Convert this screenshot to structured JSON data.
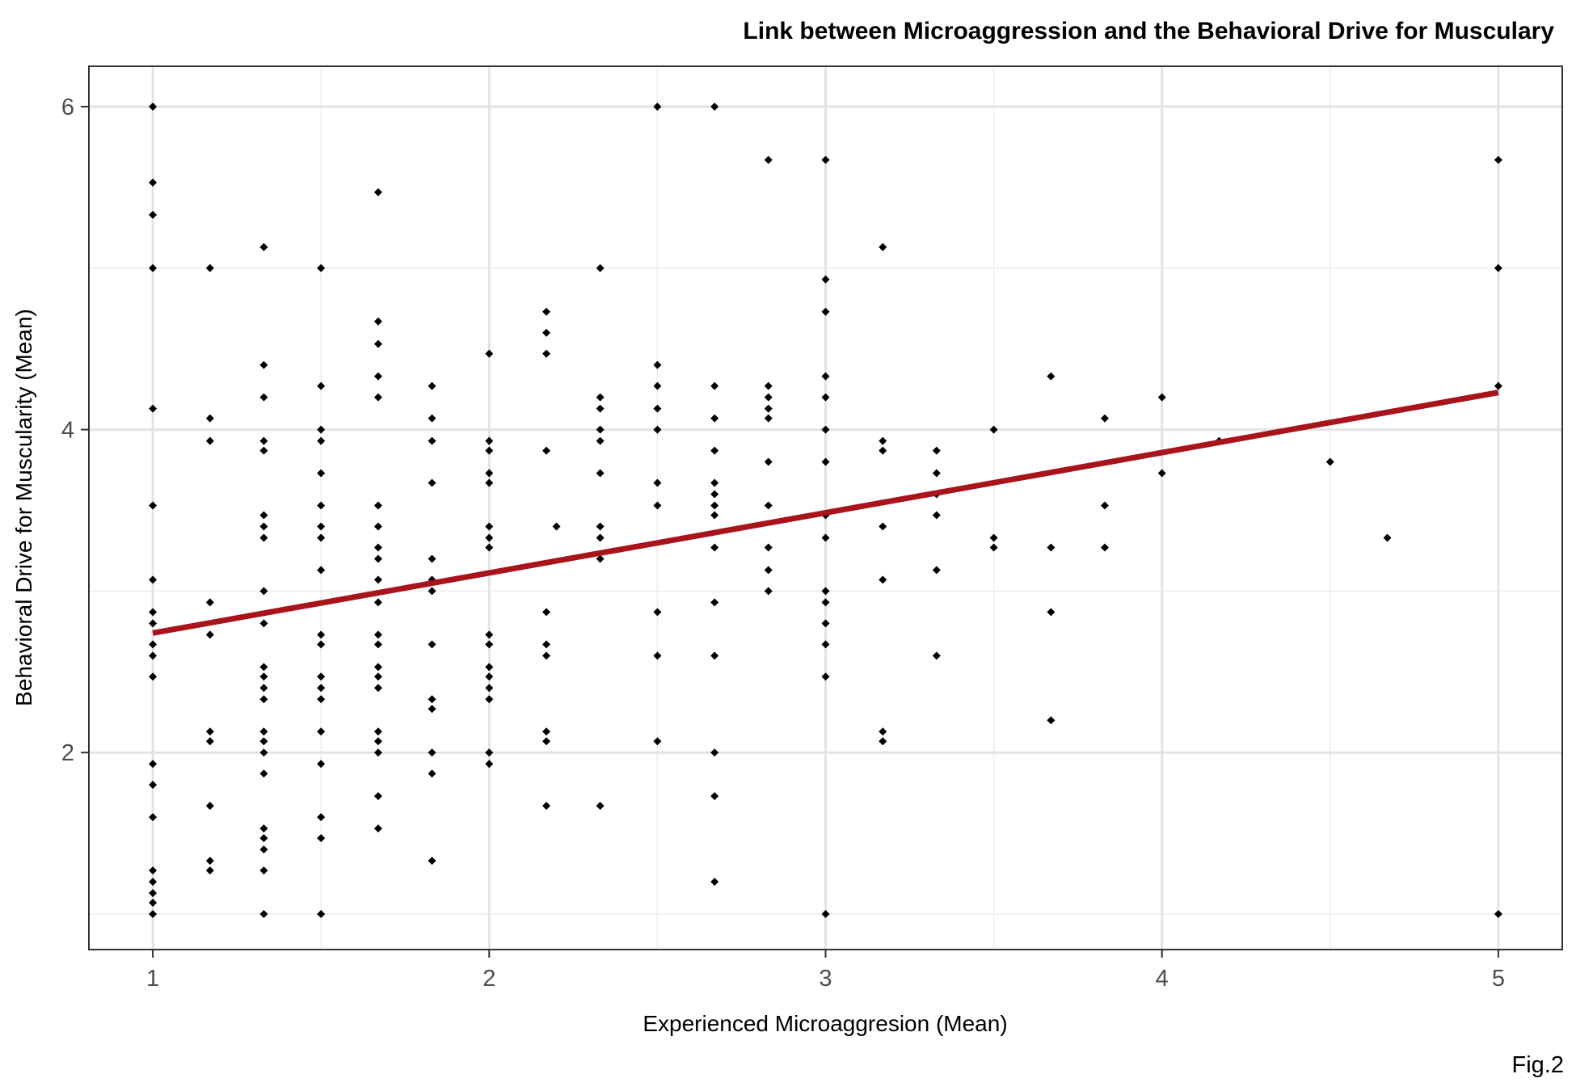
{
  "chart_data": {
    "type": "scatter",
    "title": "Link between Microaggression and the Behavioral Drive for Musculary",
    "xlabel": "Experienced Microaggresion (Mean)",
    "ylabel": "Behavioral Drive for Muscularity (Mean)",
    "caption": "Fig.2",
    "xlim": [
      0.81,
      5.19
    ],
    "ylim": [
      0.78,
      6.25
    ],
    "x_ticks": [
      1,
      2,
      3,
      4,
      5
    ],
    "y_ticks": [
      2,
      4,
      6
    ],
    "grid": true,
    "point_color": "#000000",
    "fit_line": {
      "x": [
        1,
        5
      ],
      "y": [
        2.74,
        4.23
      ],
      "color": "#a8131c"
    },
    "points": [
      [
        1,
        6
      ],
      [
        1,
        5.53
      ],
      [
        1,
        5.33
      ],
      [
        1,
        5
      ],
      [
        1,
        4.13
      ],
      [
        1,
        3.53
      ],
      [
        1,
        3.07
      ],
      [
        1,
        2.87
      ],
      [
        1,
        2.8
      ],
      [
        1,
        2.67
      ],
      [
        1,
        2.6
      ],
      [
        1,
        2.47
      ],
      [
        1,
        1.93
      ],
      [
        1,
        1.8
      ],
      [
        1,
        1.6
      ],
      [
        1,
        1.27
      ],
      [
        1,
        1.2
      ],
      [
        1,
        1.13
      ],
      [
        1,
        1.07
      ],
      [
        1,
        1
      ],
      [
        1.17,
        5
      ],
      [
        1.17,
        4.07
      ],
      [
        1.17,
        3.93
      ],
      [
        1.17,
        2.93
      ],
      [
        1.17,
        2.73
      ],
      [
        1.17,
        2.13
      ],
      [
        1.17,
        2.07
      ],
      [
        1.17,
        1.67
      ],
      [
        1.17,
        1.33
      ],
      [
        1.17,
        1.27
      ],
      [
        1.33,
        5.13
      ],
      [
        1.33,
        4.4
      ],
      [
        1.33,
        4.2
      ],
      [
        1.33,
        3.93
      ],
      [
        1.33,
        3.87
      ],
      [
        1.33,
        3.47
      ],
      [
        1.33,
        3.4
      ],
      [
        1.33,
        3.33
      ],
      [
        1.33,
        3
      ],
      [
        1.33,
        2.8
      ],
      [
        1.33,
        2.53
      ],
      [
        1.33,
        2.47
      ],
      [
        1.33,
        2.4
      ],
      [
        1.33,
        2.33
      ],
      [
        1.33,
        2.13
      ],
      [
        1.33,
        2.07
      ],
      [
        1.33,
        2
      ],
      [
        1.33,
        1.87
      ],
      [
        1.33,
        1.53
      ],
      [
        1.33,
        1.47
      ],
      [
        1.33,
        1.4
      ],
      [
        1.33,
        1.27
      ],
      [
        1.33,
        1
      ],
      [
        1.5,
        5
      ],
      [
        1.5,
        4.27
      ],
      [
        1.5,
        4
      ],
      [
        1.5,
        3.93
      ],
      [
        1.5,
        3.73
      ],
      [
        1.5,
        3.53
      ],
      [
        1.5,
        3.4
      ],
      [
        1.5,
        3.33
      ],
      [
        1.5,
        3.13
      ],
      [
        1.5,
        2.73
      ],
      [
        1.5,
        2.67
      ],
      [
        1.5,
        2.47
      ],
      [
        1.5,
        2.4
      ],
      [
        1.5,
        2.33
      ],
      [
        1.5,
        2.13
      ],
      [
        1.5,
        1.93
      ],
      [
        1.5,
        1.6
      ],
      [
        1.5,
        1.47
      ],
      [
        1.5,
        1
      ],
      [
        1.67,
        5.47
      ],
      [
        1.67,
        4.67
      ],
      [
        1.67,
        4.53
      ],
      [
        1.67,
        4.33
      ],
      [
        1.67,
        4.2
      ],
      [
        1.67,
        3.53
      ],
      [
        1.67,
        3.4
      ],
      [
        1.67,
        3.27
      ],
      [
        1.67,
        3.2
      ],
      [
        1.67,
        3.07
      ],
      [
        1.67,
        2.93
      ],
      [
        1.67,
        2.73
      ],
      [
        1.67,
        2.67
      ],
      [
        1.67,
        2.53
      ],
      [
        1.67,
        2.47
      ],
      [
        1.67,
        2.4
      ],
      [
        1.67,
        2.13
      ],
      [
        1.67,
        2.07
      ],
      [
        1.67,
        2
      ],
      [
        1.67,
        1.73
      ],
      [
        1.67,
        1.53
      ],
      [
        1.83,
        4.27
      ],
      [
        1.83,
        4.07
      ],
      [
        1.83,
        3.93
      ],
      [
        1.83,
        3.67
      ],
      [
        1.83,
        3.2
      ],
      [
        1.83,
        3.07
      ],
      [
        1.83,
        3
      ],
      [
        1.83,
        2.67
      ],
      [
        1.83,
        2.33
      ],
      [
        1.83,
        2.27
      ],
      [
        1.83,
        2
      ],
      [
        1.83,
        1.87
      ],
      [
        1.83,
        1.33
      ],
      [
        2,
        4.47
      ],
      [
        2,
        3.93
      ],
      [
        2,
        3.87
      ],
      [
        2,
        3.73
      ],
      [
        2,
        3.67
      ],
      [
        2,
        3.4
      ],
      [
        2,
        3.33
      ],
      [
        2,
        3.27
      ],
      [
        2,
        2.73
      ],
      [
        2,
        2.67
      ],
      [
        2,
        2.53
      ],
      [
        2,
        2.47
      ],
      [
        2,
        2.4
      ],
      [
        2,
        2.33
      ],
      [
        2,
        2
      ],
      [
        2,
        1.93
      ],
      [
        2.17,
        4.73
      ],
      [
        2.17,
        4.6
      ],
      [
        2.17,
        4.47
      ],
      [
        2.17,
        3.87
      ],
      [
        2.17,
        2.87
      ],
      [
        2.17,
        2.67
      ],
      [
        2.17,
        2.6
      ],
      [
        2.17,
        2.13
      ],
      [
        2.17,
        2.07
      ],
      [
        2.17,
        1.67
      ],
      [
        2.2,
        3.4
      ],
      [
        2.33,
        5
      ],
      [
        2.33,
        4.2
      ],
      [
        2.33,
        4.13
      ],
      [
        2.33,
        4
      ],
      [
        2.33,
        3.93
      ],
      [
        2.33,
        3.73
      ],
      [
        2.33,
        3.4
      ],
      [
        2.33,
        3.33
      ],
      [
        2.33,
        3.2
      ],
      [
        2.33,
        1.67
      ],
      [
        2.5,
        6
      ],
      [
        2.5,
        4.4
      ],
      [
        2.5,
        4.27
      ],
      [
        2.5,
        4.13
      ],
      [
        2.5,
        4
      ],
      [
        2.5,
        3.67
      ],
      [
        2.5,
        3.53
      ],
      [
        2.5,
        2.87
      ],
      [
        2.5,
        2.6
      ],
      [
        2.5,
        2.07
      ],
      [
        2.67,
        6
      ],
      [
        2.67,
        4.27
      ],
      [
        2.67,
        4.07
      ],
      [
        2.67,
        3.87
      ],
      [
        2.67,
        3.67
      ],
      [
        2.67,
        3.6
      ],
      [
        2.67,
        3.53
      ],
      [
        2.67,
        3.47
      ],
      [
        2.67,
        3.27
      ],
      [
        2.67,
        2.93
      ],
      [
        2.67,
        2.6
      ],
      [
        2.67,
        2
      ],
      [
        2.67,
        1.73
      ],
      [
        2.67,
        1.2
      ],
      [
        2.83,
        5.67
      ],
      [
        2.83,
        4.27
      ],
      [
        2.83,
        4.2
      ],
      [
        2.83,
        4.13
      ],
      [
        2.83,
        4.07
      ],
      [
        2.83,
        3.8
      ],
      [
        2.83,
        3.53
      ],
      [
        2.83,
        3.27
      ],
      [
        2.83,
        3.13
      ],
      [
        2.83,
        3
      ],
      [
        3,
        5.67
      ],
      [
        3,
        4.93
      ],
      [
        3,
        4.73
      ],
      [
        3,
        4.33
      ],
      [
        3,
        4.2
      ],
      [
        3,
        4
      ],
      [
        3,
        3.8
      ],
      [
        3,
        3.47
      ],
      [
        3,
        3.33
      ],
      [
        3,
        3
      ],
      [
        3,
        2.93
      ],
      [
        3,
        2.8
      ],
      [
        3,
        2.67
      ],
      [
        3,
        2.47
      ],
      [
        3,
        1
      ],
      [
        3.17,
        5.13
      ],
      [
        3.17,
        3.93
      ],
      [
        3.17,
        3.87
      ],
      [
        3.17,
        3.4
      ],
      [
        3.17,
        3.07
      ],
      [
        3.17,
        2.13
      ],
      [
        3.17,
        2.07
      ],
      [
        3.33,
        3.87
      ],
      [
        3.33,
        3.73
      ],
      [
        3.33,
        3.6
      ],
      [
        3.33,
        3.47
      ],
      [
        3.33,
        3.13
      ],
      [
        3.33,
        2.6
      ],
      [
        3.5,
        4
      ],
      [
        3.5,
        3.33
      ],
      [
        3.5,
        3.27
      ],
      [
        3.67,
        4.33
      ],
      [
        3.67,
        3.27
      ],
      [
        3.67,
        2.87
      ],
      [
        3.67,
        2.2
      ],
      [
        3.83,
        4.07
      ],
      [
        3.83,
        3.53
      ],
      [
        3.83,
        3.27
      ],
      [
        4,
        4.2
      ],
      [
        4,
        3.73
      ],
      [
        4.17,
        3.93
      ],
      [
        4.5,
        3.8
      ],
      [
        4.67,
        3.33
      ],
      [
        5,
        5.67
      ],
      [
        5,
        5
      ],
      [
        5,
        4.27
      ],
      [
        5,
        1
      ]
    ]
  }
}
